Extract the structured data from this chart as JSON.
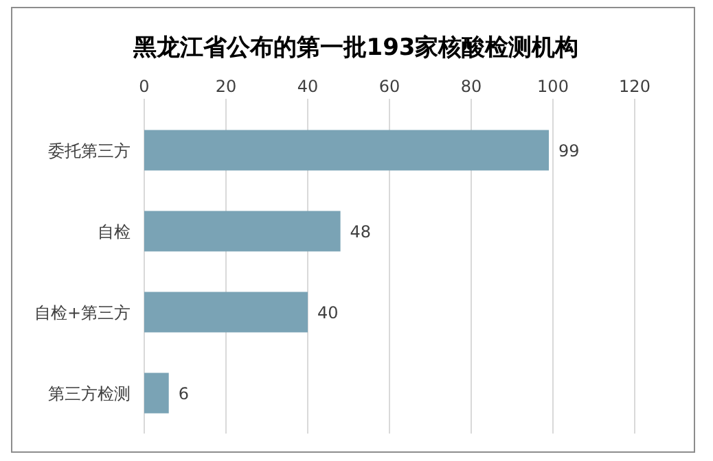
{
  "chart_data": {
    "type": "bar",
    "orientation": "horizontal",
    "title": "黑龙江省公布的第一批193家核酸检测机构",
    "categories": [
      "委托第三方",
      "自检",
      "自检+第三方",
      "第三方检测"
    ],
    "values": [
      99,
      48,
      40,
      6
    ],
    "color": "#7aa3b5",
    "data_labels": true,
    "xlim": [
      0,
      120
    ],
    "xticks": [
      0,
      20,
      40,
      60,
      80,
      100,
      120
    ],
    "grid": "x"
  }
}
